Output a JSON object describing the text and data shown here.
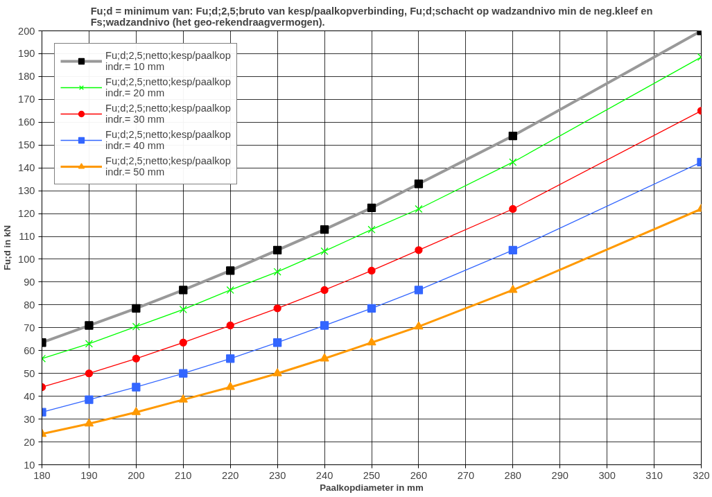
{
  "chart_data": {
    "type": "line",
    "title": "Fu;d = minimum van: Fu;d;2,5;bruto van kesp/paalkopverbinding, Fu;d;schacht op wadzandnivo min de neg.kleef en Fs;wadzandnivo (het geo-rekendraagvermogen).",
    "xlabel": "Paalkopdiameter in mm",
    "ylabel": "Fu;d in kN",
    "x": [
      180,
      190,
      200,
      210,
      220,
      230,
      240,
      250,
      260,
      280,
      320
    ],
    "series": [
      {
        "name": "Fu;d;2,5;netto;kesp/paalkop\nindr.= 10 mm",
        "color": "#999999",
        "colors": [
          "#000000",
          "#000000",
          "#000000",
          "#000000",
          "#000000",
          "#000000",
          "#000000",
          "#000000",
          "#000000",
          "#000000",
          "#000000"
        ],
        "marker": "square",
        "values": [
          63.5,
          71,
          78.5,
          86.5,
          95,
          104,
          113,
          122.5,
          133,
          154,
          200
        ]
      },
      {
        "name": "Fu;d;2,5;netto;kesp/paalkop\nindr.= 20 mm",
        "color": "#00ff00",
        "marker": "cross",
        "values": [
          56.5,
          63,
          70.5,
          78,
          86.5,
          94.5,
          103.5,
          113,
          122,
          142.5,
          188.5
        ]
      },
      {
        "name": "Fu;d;2,5;netto;kesp/paalkop\nindr.= 30 mm",
        "color": "#ff0000",
        "marker": "circle",
        "values": [
          44,
          50,
          56.5,
          63.5,
          71,
          78.5,
          86.5,
          95,
          104,
          122,
          165
        ]
      },
      {
        "name": "Fu;d;2,5;netto;kesp/paalkop\nindr.= 40 mm",
        "color": "#3366ff",
        "marker": "square",
        "values": [
          33,
          38.5,
          44,
          50,
          56.5,
          63.5,
          71,
          78.5,
          86.5,
          104,
          142.5
        ]
      },
      {
        "name": "Fu;d;2,5;netto;kesp/paalkop\nindr.= 50 mm",
        "color": "#ff9900",
        "marker": "triangle",
        "values": [
          23.5,
          28,
          33,
          38.5,
          44,
          50,
          56.5,
          63.5,
          70.5,
          86.5,
          122
        ]
      }
    ],
    "xlim": [
      180,
      320
    ],
    "ylim": [
      10,
      200
    ],
    "xticks": [
      180,
      190,
      200,
      210,
      220,
      230,
      240,
      250,
      260,
      270,
      280,
      290,
      300,
      310,
      320
    ],
    "yticks": [
      10,
      20,
      30,
      40,
      50,
      60,
      70,
      80,
      90,
      100,
      110,
      120,
      130,
      140,
      150,
      160,
      170,
      180,
      190,
      200
    ],
    "grid": true,
    "legend": "top left",
    "line_style": "solid"
  }
}
